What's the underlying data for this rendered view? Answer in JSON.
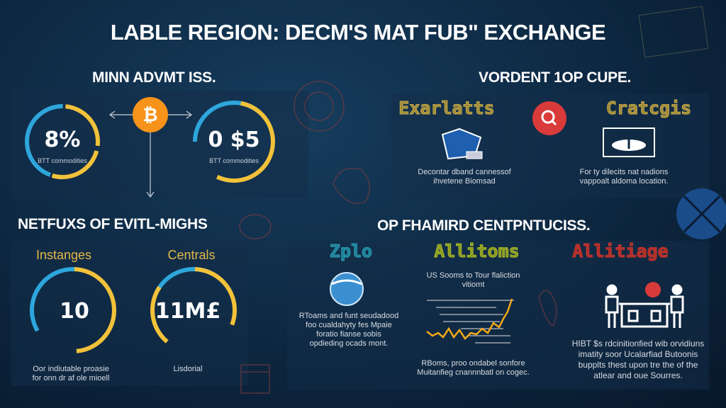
{
  "title": "LABLE REGION: DECM'S MAT FUB\" EXCHANGE",
  "colors": {
    "blue": "#2ea6dc",
    "yellow": "#f2c23a",
    "orange": "#f7931a",
    "red": "#d93a3a",
    "background": "#0d2740"
  },
  "section1": {
    "heading": "MINN ADVMT ISS.",
    "ring_left": {
      "value": "8%",
      "caption": "BTT commodities"
    },
    "ring_right": {
      "value": "0 $5",
      "caption": "BTT commodities"
    },
    "center_icon": "bitcoin-icon"
  },
  "section2": {
    "heading": "VORDENT 1OP CUPE.",
    "left": {
      "label": "Exarlatts",
      "text1": "Decontar dband cannessof",
      "text2": "ihvetene Biomsad"
    },
    "center_icon": "search-icon",
    "right": {
      "label": "Cratcgis",
      "text1": "For ty dilecits nat nadions",
      "text2": "vappoalt aldoma location."
    }
  },
  "section3": {
    "heading": "NETFUXS OF EVITL-MIGHS",
    "left": {
      "label": "Instanges",
      "value": "10",
      "text1": "Oor indiutable proasie",
      "text2": "for onn dr af ole mioell"
    },
    "right": {
      "label": "Centrals",
      "value": "11M£",
      "text1": "Lisdorial"
    }
  },
  "section4": {
    "heading": "OP FHAMIRD CENTPNTUCISS.",
    "col1": {
      "label": "Zplo",
      "label_color": "#2a9fb8",
      "lines": [
        "RToams and funt seudadood",
        "foo cualdahyty fes Mpaie",
        "foratio fianse sobis",
        "opdieding ocads mont."
      ]
    },
    "col2": {
      "label": "Allitoms",
      "label_color": "#a6b82a",
      "top": [
        "US Sooms to Tour flaliction",
        "vitiomt"
      ],
      "bottom": [
        "RBoms, proo ondabel sonfore",
        "Muitanfieg cnannnbatl on cogec."
      ]
    },
    "col3": {
      "label": "Allitiage",
      "label_color": "#c8362f",
      "lines": [
        "HIBT $s rdcinitionfied wib orvidiuns",
        "imatity soor Ucalarfiad Butoonis",
        "bupplts thest upon tre the of the",
        "atlear and oue Sourres."
      ]
    }
  }
}
